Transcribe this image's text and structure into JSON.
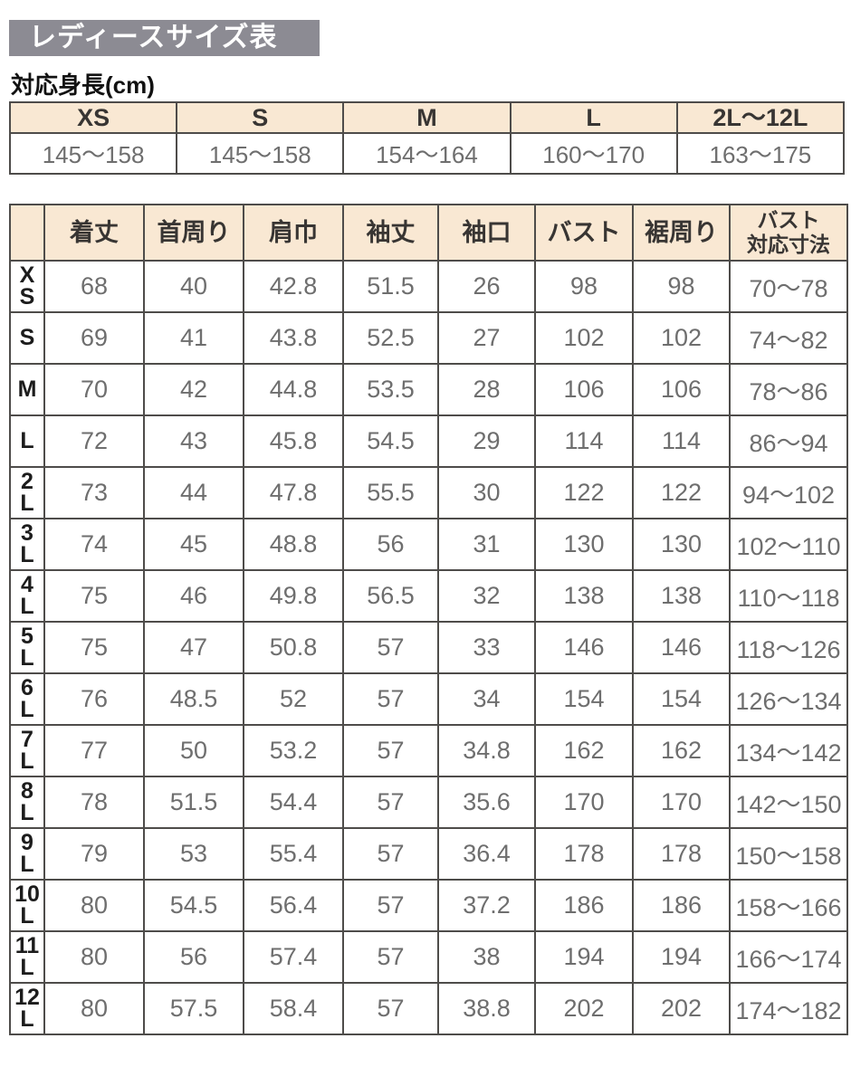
{
  "page": {
    "title": "レディースサイズ表",
    "subtitle": "対応身長(cm)"
  },
  "colors": {
    "title_band_bg": "#8c8b93",
    "header_bg": "#f9e8d3",
    "border": "#4e4c4a",
    "value_text": "#6e6e6e",
    "header_text": "#383533"
  },
  "height_table": {
    "columns": [
      "XS",
      "S",
      "M",
      "L",
      "2L〜12L"
    ],
    "values": [
      "145〜158",
      "145〜158",
      "154〜164",
      "160〜170",
      "163〜175"
    ]
  },
  "size_table": {
    "corner_label": "",
    "columns": [
      "着丈",
      "首周り",
      "肩巾",
      "袖丈",
      "袖口",
      "バスト",
      "裾周り",
      "バスト\n対応寸法"
    ],
    "rows": [
      {
        "size": "XS",
        "values": [
          "68",
          "40",
          "42.8",
          "51.5",
          "26",
          "98",
          "98",
          "70〜78"
        ]
      },
      {
        "size": "S",
        "values": [
          "69",
          "41",
          "43.8",
          "52.5",
          "27",
          "102",
          "102",
          "74〜82"
        ]
      },
      {
        "size": "M",
        "values": [
          "70",
          "42",
          "44.8",
          "53.5",
          "28",
          "106",
          "106",
          "78〜86"
        ]
      },
      {
        "size": "L",
        "values": [
          "72",
          "43",
          "45.8",
          "54.5",
          "29",
          "114",
          "114",
          "86〜94"
        ]
      },
      {
        "size": "2L",
        "values": [
          "73",
          "44",
          "47.8",
          "55.5",
          "30",
          "122",
          "122",
          "94〜102"
        ]
      },
      {
        "size": "3L",
        "values": [
          "74",
          "45",
          "48.8",
          "56",
          "31",
          "130",
          "130",
          "102〜110"
        ]
      },
      {
        "size": "4L",
        "values": [
          "75",
          "46",
          "49.8",
          "56.5",
          "32",
          "138",
          "138",
          "110〜118"
        ]
      },
      {
        "size": "5L",
        "values": [
          "75",
          "47",
          "50.8",
          "57",
          "33",
          "146",
          "146",
          "118〜126"
        ]
      },
      {
        "size": "6L",
        "values": [
          "76",
          "48.5",
          "52",
          "57",
          "34",
          "154",
          "154",
          "126〜134"
        ]
      },
      {
        "size": "7L",
        "values": [
          "77",
          "50",
          "53.2",
          "57",
          "34.8",
          "162",
          "162",
          "134〜142"
        ]
      },
      {
        "size": "8L",
        "values": [
          "78",
          "51.5",
          "54.4",
          "57",
          "35.6",
          "170",
          "170",
          "142〜150"
        ]
      },
      {
        "size": "9L",
        "values": [
          "79",
          "53",
          "55.4",
          "57",
          "36.4",
          "178",
          "178",
          "150〜158"
        ]
      },
      {
        "size": "10L",
        "values": [
          "80",
          "54.5",
          "56.4",
          "57",
          "37.2",
          "186",
          "186",
          "158〜166"
        ]
      },
      {
        "size": "11L",
        "values": [
          "80",
          "56",
          "57.4",
          "57",
          "38",
          "194",
          "194",
          "166〜174"
        ]
      },
      {
        "size": "12L",
        "values": [
          "80",
          "57.5",
          "58.4",
          "57",
          "38.8",
          "202",
          "202",
          "174〜182"
        ]
      }
    ]
  }
}
